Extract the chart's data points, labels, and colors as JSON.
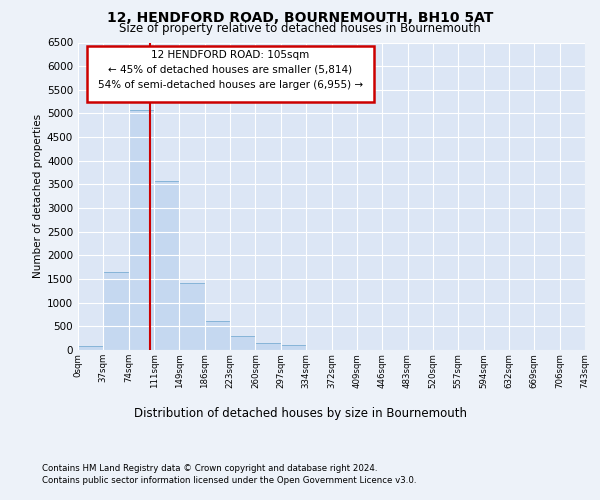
{
  "title1": "12, HENDFORD ROAD, BOURNEMOUTH, BH10 5AT",
  "title2": "Size of property relative to detached houses in Bournemouth",
  "xlabel": "Distribution of detached houses by size in Bournemouth",
  "ylabel": "Number of detached properties",
  "footnote1": "Contains HM Land Registry data © Crown copyright and database right 2024.",
  "footnote2": "Contains public sector information licensed under the Open Government Licence v3.0.",
  "annotation_line1": "12 HENDFORD ROAD: 105sqm",
  "annotation_line2": "← 45% of detached houses are smaller (5,814)",
  "annotation_line3": "54% of semi-detached houses are larger (6,955) →",
  "bar_values": [
    80,
    1650,
    5080,
    3580,
    1420,
    610,
    300,
    150,
    100,
    0,
    0,
    0,
    0,
    0,
    0,
    0,
    0,
    0,
    0,
    0
  ],
  "bin_labels": [
    "0sqm",
    "37sqm",
    "74sqm",
    "111sqm",
    "149sqm",
    "186sqm",
    "223sqm",
    "260sqm",
    "297sqm",
    "334sqm",
    "372sqm",
    "409sqm",
    "446sqm",
    "483sqm",
    "520sqm",
    "557sqm",
    "594sqm",
    "632sqm",
    "669sqm",
    "706sqm",
    "743sqm"
  ],
  "bar_color": "#c5d8f0",
  "bar_edge_color": "#7aadd4",
  "vline_color": "#cc0000",
  "bg_color": "#edf2f9",
  "plot_bg_color": "#dce6f5",
  "grid_color": "#ffffff",
  "annotation_box_edge": "#cc0000",
  "ylim": [
    0,
    6500
  ],
  "yticks": [
    0,
    500,
    1000,
    1500,
    2000,
    2500,
    3000,
    3500,
    4000,
    4500,
    5000,
    5500,
    6000,
    6500
  ]
}
